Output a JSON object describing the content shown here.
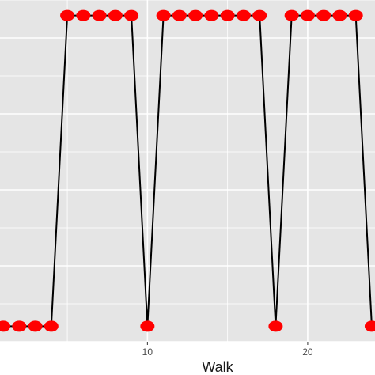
{
  "chart_data": {
    "type": "line",
    "xlabel": "Walk",
    "ylabel": "",
    "x_ticks": [
      10,
      20
    ],
    "xlim": [
      0.8,
      24.2
    ],
    "ylim": [
      -0.05,
      1.05
    ],
    "grid": true,
    "panel_background": "#e5e5e5",
    "grid_color": "#ffffff",
    "line_color": "#000000",
    "point_color": "#ff0000",
    "series": [
      {
        "x": [
          1,
          2,
          3,
          4,
          5,
          6,
          7,
          8,
          9,
          10,
          11,
          12,
          13,
          14,
          15,
          16,
          17,
          18,
          19,
          20,
          21,
          22,
          23,
          24
        ],
        "values": [
          0,
          0,
          0,
          0,
          1,
          1,
          1,
          1,
          1,
          0,
          1,
          1,
          1,
          1,
          1,
          1,
          1,
          0,
          1,
          1,
          1,
          1,
          1,
          0
        ]
      }
    ]
  }
}
